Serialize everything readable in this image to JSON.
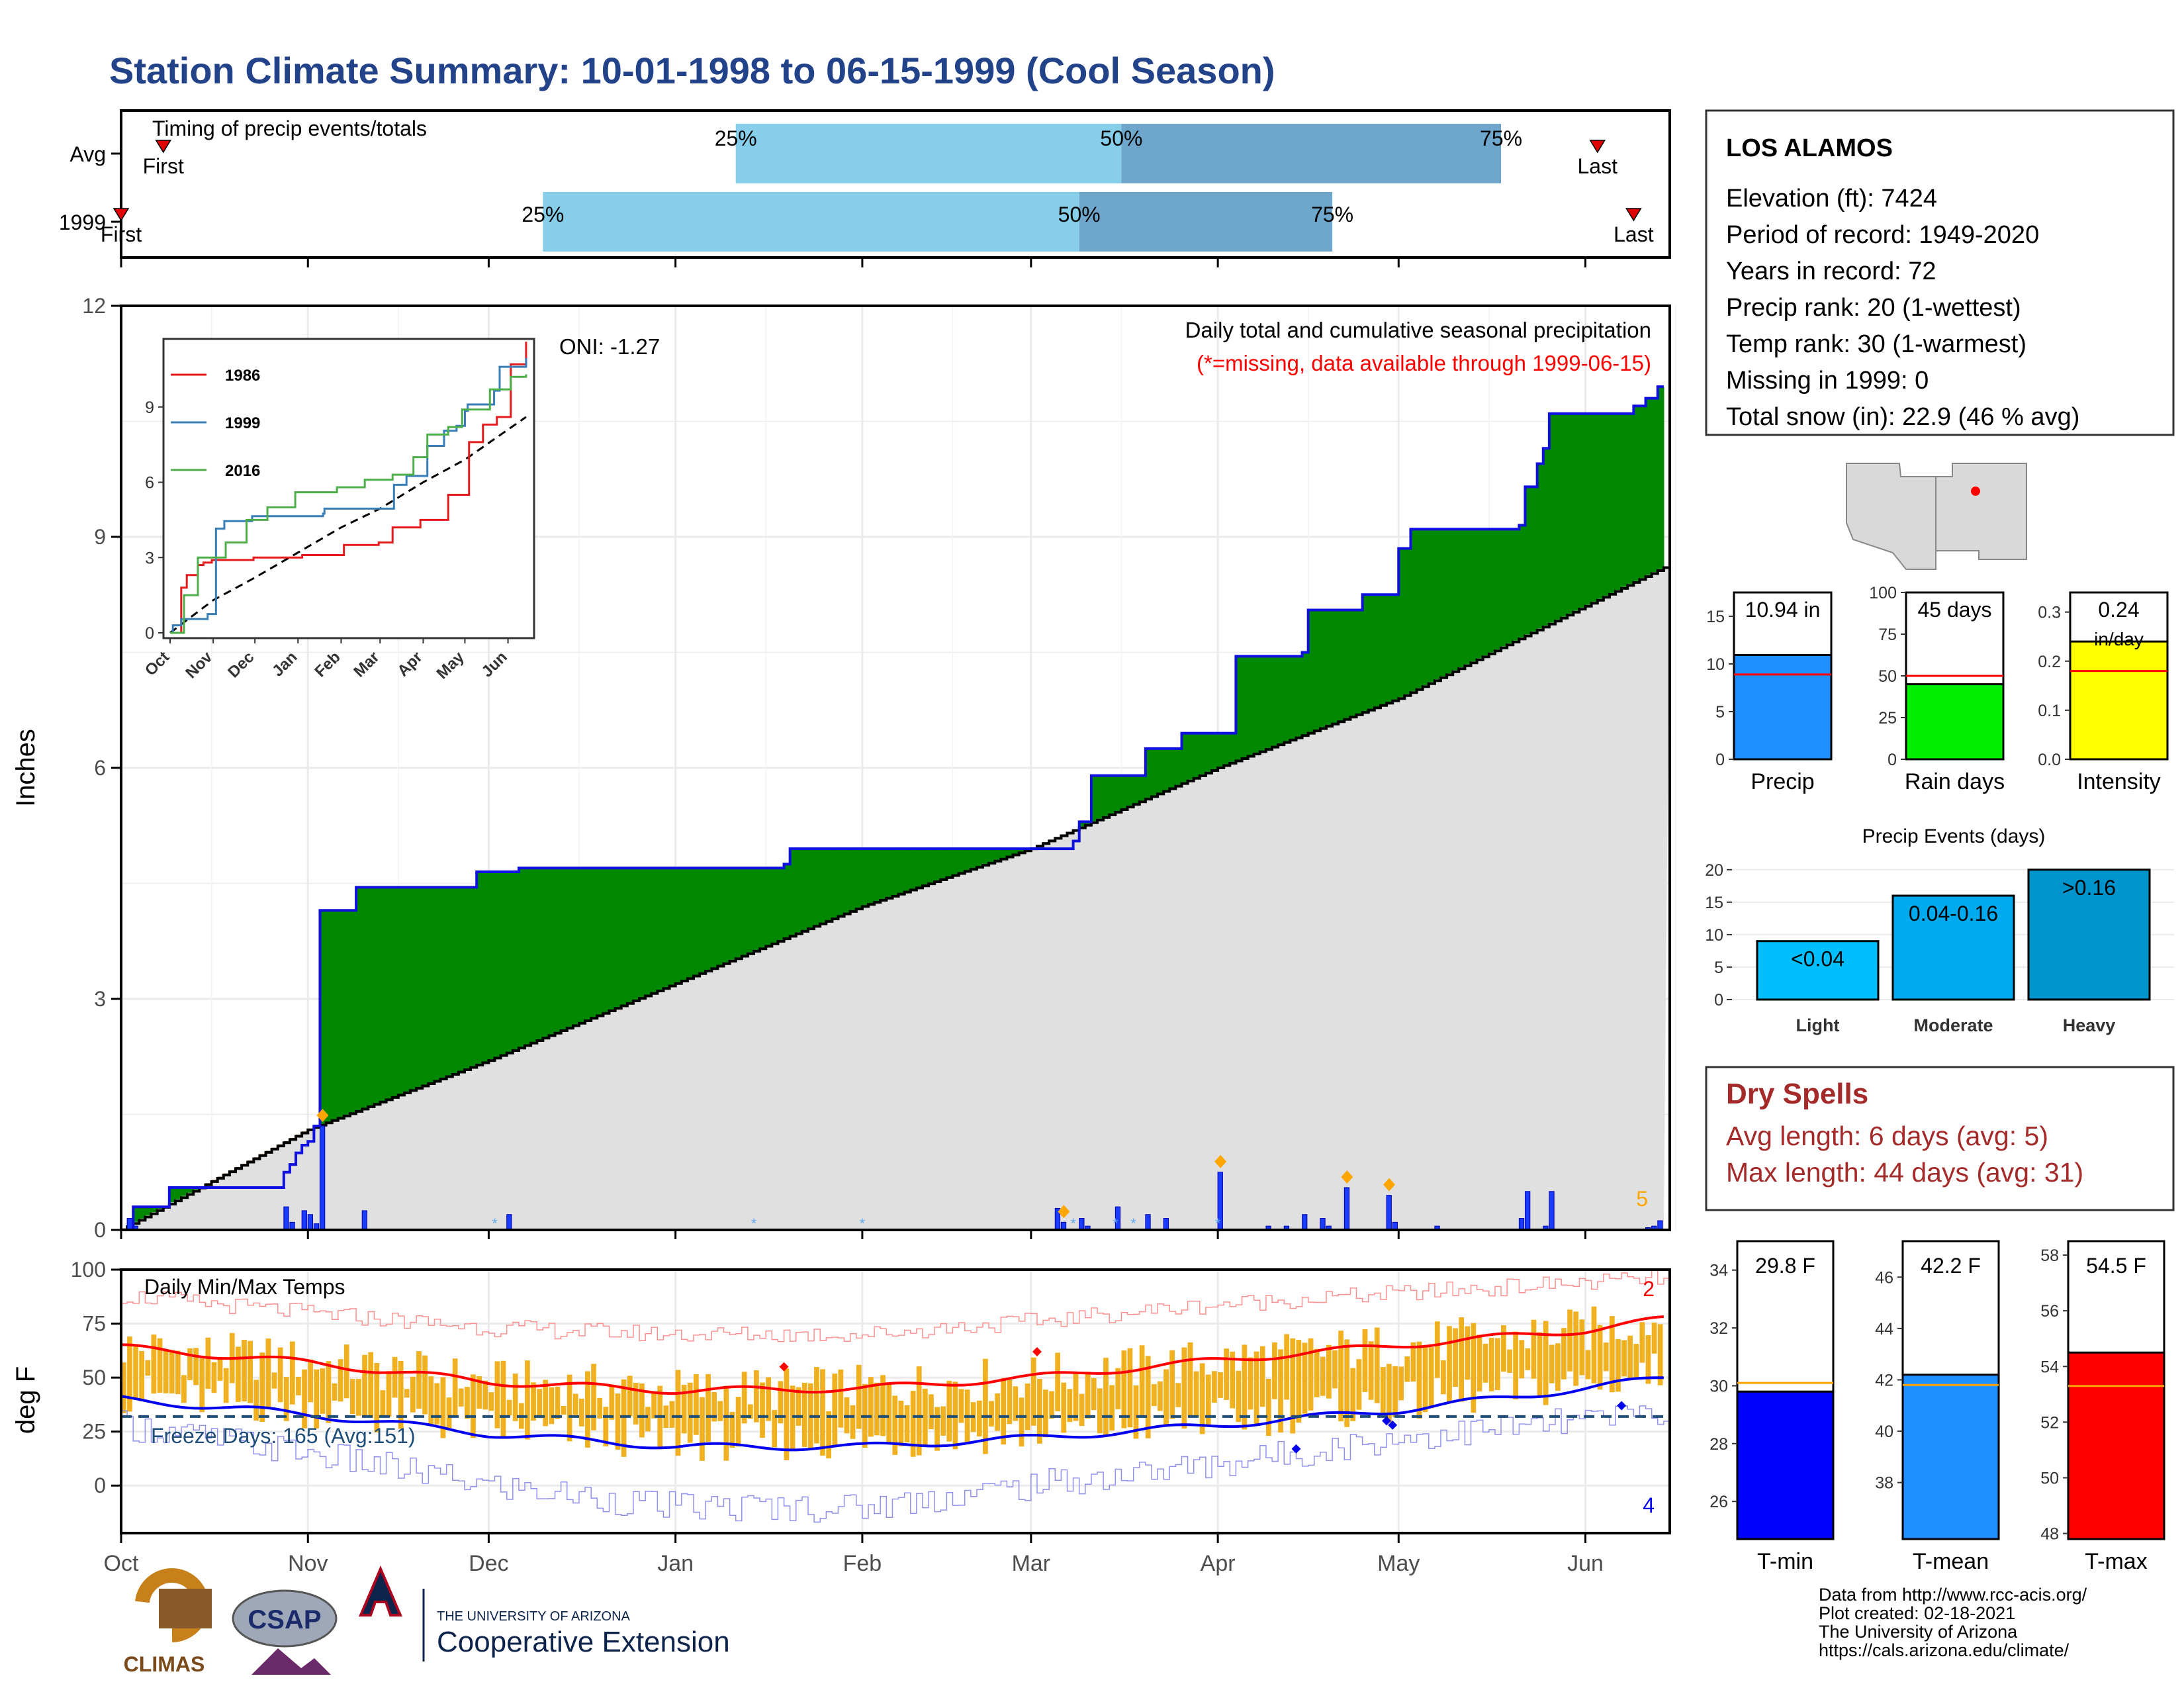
{
  "page": {
    "title": "Station Climate Summary: 10-01-1998 to 06-15-1999 (Cool Season)",
    "title_color": "#22428a"
  },
  "timing": {
    "label": "Timing of precip events/totals",
    "rows": [
      {
        "label": "Avg",
        "first": "First",
        "last": "Last",
        "p25": "25%",
        "p50": "50%",
        "p75": "75%",
        "first_day": 7,
        "d25": 102,
        "d50": 166,
        "d75": 229,
        "last_day": 245
      },
      {
        "label": "1999",
        "first": "First",
        "last": "Last",
        "p25": "25%",
        "p50": "50%",
        "p75": "75%",
        "first_day": 0,
        "d25": 70,
        "d50": 159,
        "d75": 201,
        "last_day": 251
      }
    ],
    "colors": {
      "early": "#87ceeb",
      "late": "#6ea6cc",
      "marker": "#e00000"
    }
  },
  "main_chart": {
    "ylabel": "Inches",
    "annotation": "Daily total and cumulative seasonal precipitation",
    "missing_note": "(*=missing, data available through 1999-06-15)",
    "oni": "ONI: -1.27",
    "right_count": "5",
    "yticks": [
      "0",
      "3",
      "6",
      "9",
      "12"
    ],
    "ylim": [
      0,
      12
    ],
    "colors": {
      "above": "#008800",
      "below": "#8b5a1a",
      "avg_fill": "#e0e0e0",
      "cum_line": "#1010e0",
      "daily": "#1a3cff",
      "avg_line": "#000000",
      "marker": "#ffa500"
    }
  },
  "month_labels": [
    "Oct",
    "Nov",
    "Dec",
    "Jan",
    "Feb",
    "Mar",
    "Apr",
    "May",
    "Jun"
  ],
  "month_days": [
    0,
    31,
    61,
    92,
    123,
    151,
    182,
    212,
    243
  ],
  "chart_data": {
    "type": "area",
    "x_unit": "day of season starting 1998-10-01",
    "cumulative_1999": [
      [
        0,
        0
      ],
      [
        2,
        0.3
      ],
      [
        8,
        0.55
      ],
      [
        21,
        0.55
      ],
      [
        27,
        0.75
      ],
      [
        28,
        0.85
      ],
      [
        29,
        1.0
      ],
      [
        30,
        1.1
      ],
      [
        31,
        1.15
      ],
      [
        32,
        1.35
      ],
      [
        33,
        4.15
      ],
      [
        38,
        4.15
      ],
      [
        39,
        4.45
      ],
      [
        58,
        4.45
      ],
      [
        59,
        4.65
      ],
      [
        66,
        4.7
      ],
      [
        110,
        4.75
      ],
      [
        111,
        4.95
      ],
      [
        155,
        4.95
      ],
      [
        158,
        5.05
      ],
      [
        159,
        5.3
      ],
      [
        161,
        5.9
      ],
      [
        170,
        6.25
      ],
      [
        176,
        6.45
      ],
      [
        185,
        7.45
      ],
      [
        196,
        7.5
      ],
      [
        197,
        8.05
      ],
      [
        206,
        8.25
      ],
      [
        212,
        8.85
      ],
      [
        214,
        9.1
      ],
      [
        232,
        9.15
      ],
      [
        233,
        9.65
      ],
      [
        235,
        9.95
      ],
      [
        236,
        10.15
      ],
      [
        237,
        10.6
      ],
      [
        251,
        10.7
      ],
      [
        253,
        10.8
      ],
      [
        255,
        10.95
      ],
      [
        256,
        10.95
      ]
    ],
    "average_cumulative": [
      [
        0,
        0
      ],
      [
        31,
        1.3
      ],
      [
        61,
        2.2
      ],
      [
        92,
        3.2
      ],
      [
        123,
        4.2
      ],
      [
        151,
        4.95
      ],
      [
        182,
        6.0
      ],
      [
        212,
        6.9
      ],
      [
        243,
        8.1
      ],
      [
        256,
        8.6
      ]
    ],
    "daily_precip": [
      [
        1,
        0.15
      ],
      [
        2,
        0.05
      ],
      [
        27,
        0.3
      ],
      [
        28,
        0.1
      ],
      [
        30,
        0.25
      ],
      [
        31,
        0.2
      ],
      [
        32,
        0.08
      ],
      [
        33,
        1.35
      ],
      [
        40,
        0.25
      ],
      [
        64,
        0.2
      ],
      [
        155,
        0.28
      ],
      [
        156,
        0.1
      ],
      [
        159,
        0.15
      ],
      [
        160,
        0.05
      ],
      [
        165,
        0.3
      ],
      [
        170,
        0.2
      ],
      [
        173,
        0.15
      ],
      [
        182,
        0.75
      ],
      [
        190,
        0.05
      ],
      [
        193,
        0.05
      ],
      [
        196,
        0.2
      ],
      [
        199,
        0.15
      ],
      [
        200,
        0.05
      ],
      [
        203,
        0.55
      ],
      [
        210,
        0.45
      ],
      [
        211,
        0.1
      ],
      [
        218,
        0.05
      ],
      [
        232,
        0.15
      ],
      [
        233,
        0.5
      ],
      [
        236,
        0.05
      ],
      [
        237,
        0.5
      ],
      [
        253,
        0.03
      ],
      [
        254,
        0.05
      ],
      [
        255,
        0.12
      ]
    ],
    "markers": [
      33,
      156,
      182,
      203,
      210
    ],
    "series": [
      {
        "name": "1986"
      },
      {
        "name": "1999"
      },
      {
        "name": "2016"
      }
    ]
  },
  "inset": {
    "yticks": [
      "0",
      "3",
      "6",
      "9"
    ],
    "xticks": [
      "Oct",
      "Nov",
      "Dec",
      "Jan",
      "Feb",
      "Mar",
      "Apr",
      "May",
      "Jun"
    ],
    "ylim": [
      0,
      11.5
    ],
    "legend": [
      {
        "name": "1986",
        "color": "#e41a1c"
      },
      {
        "name": "1999",
        "color": "#377eb8"
      },
      {
        "name": "2016",
        "color": "#4daf4a"
      }
    ],
    "series": {
      "1986": [
        [
          0,
          0
        ],
        [
          8,
          1.8
        ],
        [
          12,
          2.3
        ],
        [
          20,
          2.7
        ],
        [
          24,
          2.8
        ],
        [
          30,
          2.9
        ],
        [
          60,
          3.0
        ],
        [
          95,
          3.1
        ],
        [
          125,
          3.5
        ],
        [
          150,
          3.6
        ],
        [
          160,
          4.2
        ],
        [
          180,
          4.5
        ],
        [
          200,
          5.5
        ],
        [
          215,
          7.6
        ],
        [
          225,
          8.3
        ],
        [
          235,
          8.6
        ],
        [
          245,
          10.7
        ],
        [
          256,
          11.6
        ]
      ],
      "1999": [
        [
          0,
          0
        ],
        [
          2,
          0.3
        ],
        [
          8,
          0.55
        ],
        [
          27,
          0.75
        ],
        [
          33,
          4.15
        ],
        [
          39,
          4.45
        ],
        [
          59,
          4.65
        ],
        [
          110,
          4.75
        ],
        [
          111,
          4.95
        ],
        [
          155,
          4.95
        ],
        [
          161,
          5.9
        ],
        [
          170,
          6.25
        ],
        [
          185,
          7.45
        ],
        [
          197,
          8.05
        ],
        [
          206,
          8.25
        ],
        [
          212,
          8.85
        ],
        [
          214,
          9.1
        ],
        [
          233,
          9.65
        ],
        [
          237,
          10.6
        ],
        [
          256,
          10.95
        ]
      ],
      "2016": [
        [
          0,
          0
        ],
        [
          10,
          1.5
        ],
        [
          20,
          3.0
        ],
        [
          40,
          3.6
        ],
        [
          55,
          4.5
        ],
        [
          70,
          5.0
        ],
        [
          90,
          5.6
        ],
        [
          120,
          5.8
        ],
        [
          140,
          6.1
        ],
        [
          160,
          6.3
        ],
        [
          175,
          7.0
        ],
        [
          185,
          7.9
        ],
        [
          200,
          8.2
        ],
        [
          210,
          8.9
        ],
        [
          230,
          9.7
        ],
        [
          245,
          10.2
        ],
        [
          256,
          10.3
        ]
      ],
      "average": [
        [
          0,
          0
        ],
        [
          31,
          1.3
        ],
        [
          61,
          2.2
        ],
        [
          92,
          3.2
        ],
        [
          123,
          4.2
        ],
        [
          151,
          4.95
        ],
        [
          182,
          6.0
        ],
        [
          212,
          6.9
        ],
        [
          243,
          8.1
        ],
        [
          256,
          8.6
        ]
      ]
    }
  },
  "temp_chart": {
    "ylabel": "deg F",
    "label": "Daily Min/Max Temps",
    "freeze": "Freeze Days: 165 (Avg:151)",
    "freeze_line": 32,
    "top_count": "2",
    "bottom_count": "4",
    "yticks": [
      "0",
      "25",
      "50",
      "75",
      "100"
    ],
    "ylim": [
      -22,
      100
    ],
    "avg_max": [
      [
        0,
        64
      ],
      [
        31,
        57
      ],
      [
        61,
        48
      ],
      [
        92,
        44
      ],
      [
        123,
        45
      ],
      [
        151,
        50
      ],
      [
        182,
        58
      ],
      [
        212,
        65
      ],
      [
        243,
        72
      ],
      [
        256,
        77
      ]
    ],
    "avg_min": [
      [
        0,
        40
      ],
      [
        31,
        33
      ],
      [
        61,
        24
      ],
      [
        92,
        18
      ],
      [
        123,
        18
      ],
      [
        151,
        22
      ],
      [
        182,
        28
      ],
      [
        212,
        35
      ],
      [
        243,
        45
      ],
      [
        256,
        50
      ]
    ],
    "record_high": [
      [
        0,
        88
      ],
      [
        31,
        80
      ],
      [
        61,
        73
      ],
      [
        92,
        70
      ],
      [
        123,
        70
      ],
      [
        151,
        76
      ],
      [
        182,
        84
      ],
      [
        212,
        89
      ],
      [
        243,
        94
      ],
      [
        256,
        96
      ]
    ],
    "record_low": [
      [
        0,
        28
      ],
      [
        31,
        15
      ],
      [
        61,
        0
      ],
      [
        92,
        -10
      ],
      [
        123,
        -10
      ],
      [
        151,
        0
      ],
      [
        182,
        10
      ],
      [
        212,
        22
      ],
      [
        243,
        30
      ],
      [
        256,
        35
      ]
    ],
    "colors": {
      "bar": "#f0b020",
      "avg_max": "#ff0000",
      "avg_min": "#0000ee",
      "record_high": "#ff9090",
      "record_low": "#9090ee",
      "freeze": "#1f4e79"
    }
  },
  "station": {
    "name": "LOS ALAMOS",
    "lines": [
      "Elevation (ft): 7424",
      "Period of record: 1949-2020",
      "Years in record: 72",
      "Precip rank: 20 (1-wettest)",
      "Temp rank: 30 (1-warmest)",
      "Missing in 1999: 0",
      "Total snow (in): 22.9 (46 % avg)"
    ]
  },
  "summary_bars": [
    {
      "label": "Precip",
      "value": 10.94,
      "value_text": "10.94 in",
      "ymax": 17.5,
      "avg": 8.9,
      "ticks": [
        "0",
        "5",
        "10",
        "15"
      ],
      "tick_values": [
        0,
        5,
        10,
        15
      ],
      "color": "#1e90ff"
    },
    {
      "label": "Rain days",
      "value": 45,
      "value_text": "45 days",
      "ymax": 100,
      "avg": 50,
      "ticks": [
        "0",
        "25",
        "50",
        "75",
        "100"
      ],
      "tick_values": [
        0,
        25,
        50,
        75,
        100
      ],
      "color": "#00ee00"
    },
    {
      "label": "Intensity",
      "value": 0.24,
      "value_text": "0.24",
      "value_unit": "in/day",
      "ymax": 0.34,
      "avg": 0.18,
      "ticks": [
        "0.0",
        "0.1",
        "0.2",
        "0.3"
      ],
      "tick_values": [
        0,
        0.1,
        0.2,
        0.3
      ],
      "color": "#ffff00"
    }
  ],
  "precip_events": {
    "title": "Precip Events (days)",
    "yticks": [
      "0",
      "5",
      "10",
      "15",
      "20"
    ],
    "ymax": 21,
    "bars": [
      {
        "label": "Light",
        "value": 9,
        "text": "<0.04",
        "color": "#00bfff"
      },
      {
        "label": "Moderate",
        "value": 16,
        "text": "0.04-0.16",
        "color": "#00aaee"
      },
      {
        "label": "Heavy",
        "value": 20,
        "text": ">0.16",
        "color": "#0094cc"
      }
    ]
  },
  "dry_spells": {
    "title": "Dry Spells",
    "avg": "Avg length: 6 days (avg: 5)",
    "max": "Max length: 44 days (avg: 31)",
    "color": "#a52a2a"
  },
  "temp_bars": [
    {
      "label": "T-min",
      "value": 29.8,
      "value_text": "29.8 F",
      "ymin": 24.7,
      "ymax": 35,
      "avg": 30.1,
      "ticks": [
        "26",
        "28",
        "30",
        "32",
        "34"
      ],
      "tick_values": [
        26,
        28,
        30,
        32,
        34
      ],
      "color": "#0000ff"
    },
    {
      "label": "T-mean",
      "value": 42.2,
      "value_text": "42.2 F",
      "ymin": 35.8,
      "ymax": 47.4,
      "avg": 41.8,
      "ticks": [
        "38",
        "40",
        "42",
        "44",
        "46"
      ],
      "tick_values": [
        38,
        40,
        42,
        44,
        46
      ],
      "color": "#1e90ff"
    },
    {
      "label": "T-max",
      "value": 54.5,
      "value_text": "54.5 F",
      "ymin": 47.8,
      "ymax": 58.5,
      "avg": 53.3,
      "ticks": [
        "48",
        "50",
        "52",
        "54",
        "56",
        "58"
      ],
      "tick_values": [
        48,
        50,
        52,
        54,
        56,
        58
      ],
      "color": "#ff0000"
    }
  ],
  "footer": {
    "lines": [
      "Data from http://www.rcc-acis.org/",
      "Plot created: 02-18-2021",
      "The University of Arizona",
      "https://cals.arizona.edu/climate/"
    ],
    "logo_climas": "CLIMAS",
    "logo_csap": "CSAP",
    "logo_uofa_small": "THE UNIVERSITY OF ARIZONA",
    "logo_uofa_big": "Cooperative Extension"
  }
}
